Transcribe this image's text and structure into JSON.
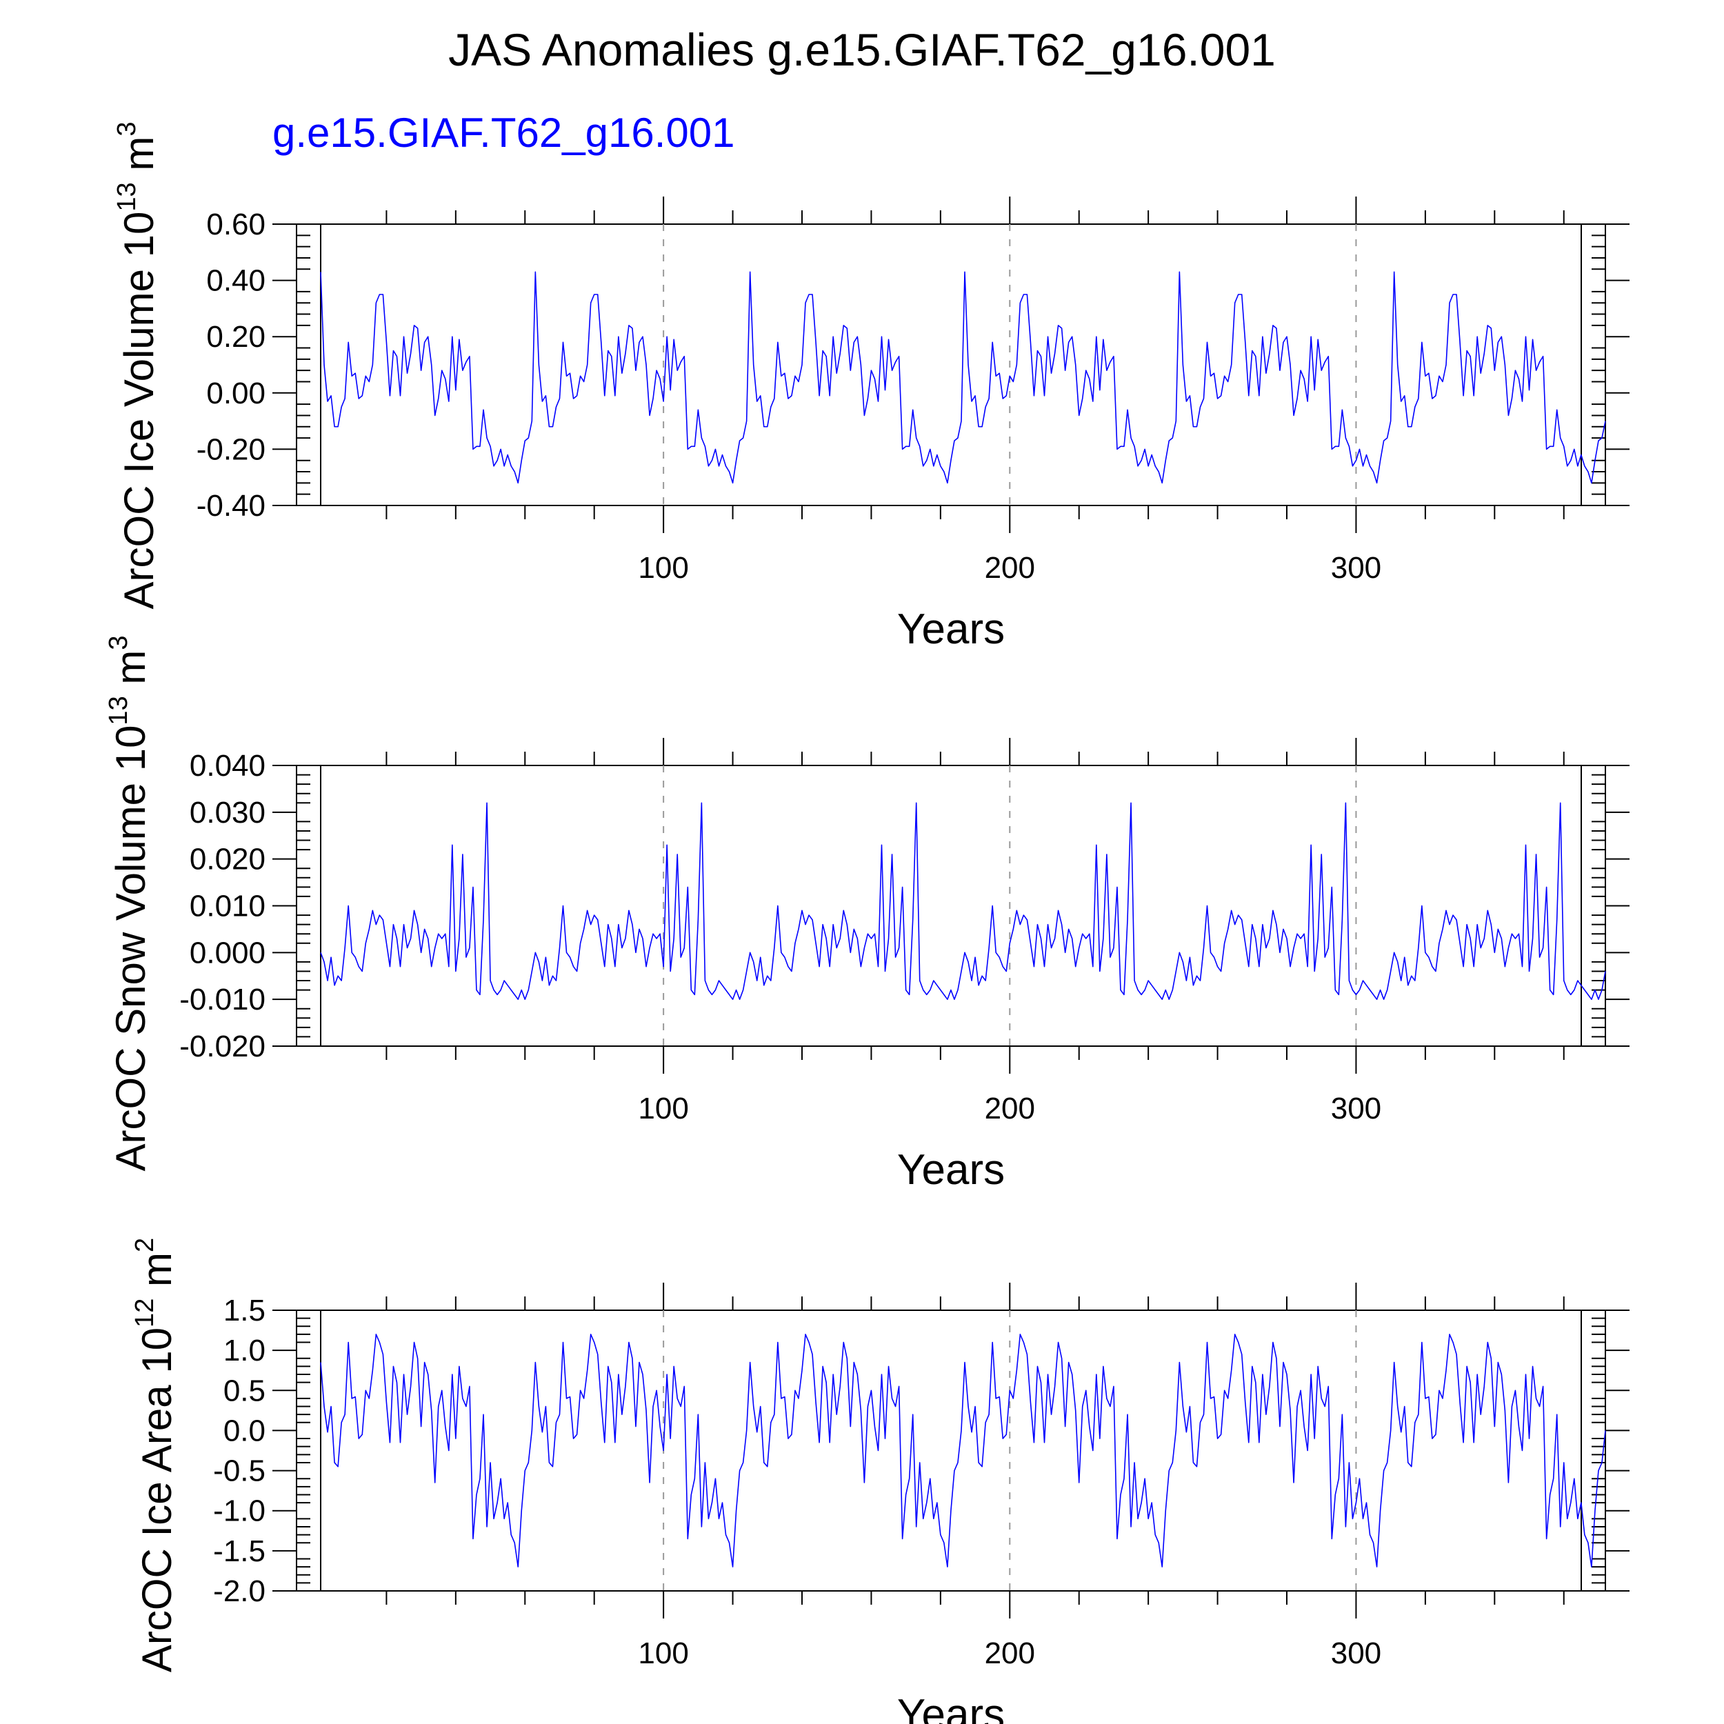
{
  "title": "JAS Anomalies g.e15.GIAF.T62_g16.001",
  "run_label": "g.e15.GIAF.T62_g16.001",
  "colors": {
    "series": "#0000ff",
    "run_label": "#0000ff",
    "grid": "#999999",
    "axis": "#000000"
  },
  "chart_data": [
    {
      "type": "line",
      "ylabel_text": "ArcOC Ice Volume 10",
      "ylabel_exp": "13",
      "ylabel_unit": " m",
      "ylabel_unit_exp": "3",
      "xlabel": "Years",
      "xlim": [
        1,
        372
      ],
      "ylim": [
        -0.4,
        0.6
      ],
      "yticks": [
        -0.4,
        -0.2,
        0.0,
        0.2,
        0.4,
        0.6
      ],
      "ytick_labels": [
        "-0.40",
        "-0.20",
        "0.00",
        "0.20",
        "0.40",
        "0.60"
      ],
      "xticks": [
        100,
        200,
        300
      ],
      "xtick_labels": [
        "100",
        "200",
        "300"
      ],
      "cycle_length": 62,
      "series": [
        {
          "values": [
            0.43,
            0.1,
            -0.03,
            -0.01,
            -0.12,
            -0.12,
            -0.05,
            -0.02,
            0.18,
            0.06,
            0.07,
            -0.02,
            -0.01,
            0.06,
            0.04,
            0.1,
            0.32,
            0.35,
            0.35,
            0.18,
            -0.01,
            0.15,
            0.13,
            -0.01,
            0.2,
            0.07,
            0.14,
            0.24,
            0.23,
            0.08,
            0.18,
            0.2,
            0.1,
            -0.08,
            -0.02,
            0.08,
            0.05,
            -0.03,
            0.2,
            0.01,
            0.19,
            0.08,
            0.11,
            0.13,
            -0.2,
            -0.19,
            -0.19,
            -0.06,
            -0.16,
            -0.19,
            -0.26,
            -0.24,
            -0.2,
            -0.26,
            -0.22,
            -0.26,
            -0.28,
            -0.32,
            -0.24,
            -0.17,
            -0.16,
            -0.1
          ]
        }
      ]
    },
    {
      "type": "line",
      "ylabel_text": "ArcOC Snow Volume 10",
      "ylabel_exp": "13",
      "ylabel_unit": " m",
      "ylabel_unit_exp": "3",
      "xlabel": "Years",
      "xlim": [
        1,
        372
      ],
      "ylim": [
        -0.02,
        0.04
      ],
      "yticks": [
        -0.02,
        -0.01,
        0.0,
        0.01,
        0.02,
        0.03,
        0.04
      ],
      "ytick_labels": [
        "-0.020",
        "-0.010",
        "0.000",
        "0.010",
        "0.020",
        "0.030",
        "0.040"
      ],
      "xticks": [
        100,
        200,
        300
      ],
      "xtick_labels": [
        "100",
        "200",
        "300"
      ],
      "cycle_length": 62,
      "series": [
        {
          "values": [
            0.0,
            -0.002,
            -0.006,
            -0.001,
            -0.007,
            -0.005,
            -0.006,
            0.001,
            0.01,
            0.0,
            -0.001,
            -0.003,
            -0.004,
            0.002,
            0.005,
            0.009,
            0.006,
            0.008,
            0.007,
            0.002,
            -0.003,
            0.006,
            0.003,
            -0.003,
            0.006,
            0.001,
            0.003,
            0.009,
            0.006,
            0.0,
            0.005,
            0.003,
            -0.003,
            0.001,
            0.004,
            0.003,
            0.004,
            -0.003,
            0.023,
            -0.004,
            0.003,
            0.021,
            -0.001,
            0.001,
            0.014,
            -0.008,
            -0.009,
            0.007,
            0.032,
            -0.006,
            -0.008,
            -0.009,
            -0.008,
            -0.006,
            -0.007,
            -0.008,
            -0.009,
            -0.01,
            -0.008,
            -0.01,
            -0.008,
            -0.004
          ]
        }
      ]
    },
    {
      "type": "line",
      "ylabel_text": "ArcOC Ice Area 10",
      "ylabel_exp": "12",
      "ylabel_unit": " m",
      "ylabel_unit_exp": "2",
      "xlabel": "Years",
      "xlim": [
        1,
        372
      ],
      "ylim": [
        -2.0,
        1.5
      ],
      "yticks": [
        -2.0,
        -1.5,
        -1.0,
        -0.5,
        0.0,
        0.5,
        1.0,
        1.5
      ],
      "ytick_labels": [
        "-2.0",
        "-1.5",
        "-1.0",
        "-0.5",
        "0.0",
        "0.5",
        "1.0",
        "1.5"
      ],
      "xticks": [
        100,
        200,
        300
      ],
      "xtick_labels": [
        "100",
        "200",
        "300"
      ],
      "cycle_length": 62,
      "series": [
        {
          "values": [
            0.85,
            0.3,
            -0.02,
            0.3,
            -0.4,
            -0.45,
            0.1,
            0.2,
            1.1,
            0.4,
            0.42,
            -0.1,
            -0.05,
            0.5,
            0.4,
            0.75,
            1.2,
            1.1,
            0.95,
            0.35,
            -0.15,
            0.8,
            0.6,
            -0.15,
            0.7,
            0.2,
            0.55,
            1.1,
            0.9,
            0.05,
            0.85,
            0.7,
            0.25,
            -0.65,
            0.3,
            0.5,
            0.05,
            -0.25,
            0.7,
            -0.1,
            0.8,
            0.4,
            0.3,
            0.55,
            -1.35,
            -0.8,
            -0.6,
            0.2,
            -1.2,
            -0.4,
            -1.1,
            -0.9,
            -0.6,
            -1.1,
            -0.9,
            -1.3,
            -1.4,
            -1.7,
            -1.0,
            -0.5,
            -0.4,
            0.0
          ]
        }
      ]
    }
  ]
}
